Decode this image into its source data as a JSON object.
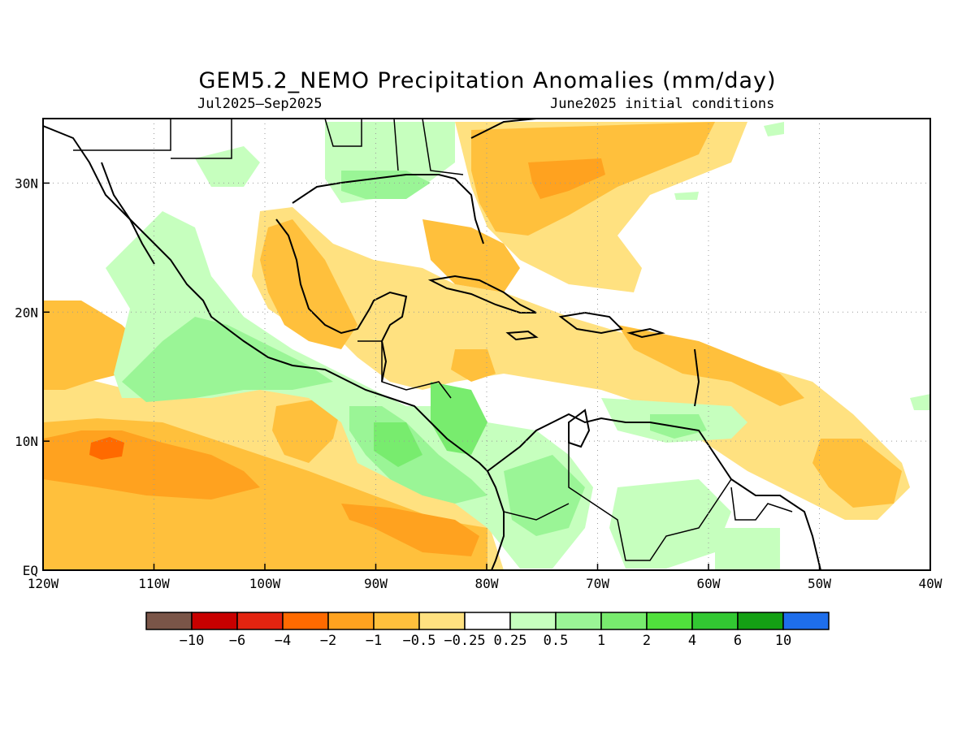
{
  "title": "GEM5.2_NEMO Precipitation Anomalies (mm/day)",
  "subtitle_left": "Jul2025–Sep2025",
  "subtitle_right": "June2025 initial conditions",
  "map": {
    "lon_range": [
      -120,
      -40
    ],
    "lat_range": [
      0,
      35
    ],
    "x_ticks": [
      {
        "lon": -120,
        "label": "120W"
      },
      {
        "lon": -110,
        "label": "110W"
      },
      {
        "lon": -100,
        "label": "100W"
      },
      {
        "lon": -90,
        "label": "90W"
      },
      {
        "lon": -80,
        "label": "80W"
      },
      {
        "lon": -70,
        "label": "70W"
      },
      {
        "lon": -60,
        "label": "60W"
      },
      {
        "lon": -50,
        "label": "50W"
      },
      {
        "lon": -40,
        "label": "40W"
      }
    ],
    "y_ticks": [
      {
        "lat": 0,
        "label": "EQ"
      },
      {
        "lat": 10,
        "label": "10N"
      },
      {
        "lat": 20,
        "label": "20N"
      },
      {
        "lat": 30,
        "label": "30N"
      }
    ],
    "grid": true,
    "features": "coastlines and country borders; shaded precipitation anomaly fields"
  },
  "colorbar": {
    "colors": [
      "#7a5548",
      "#c80000",
      "#e32410",
      "#ff6a00",
      "#ffa21f",
      "#ffc03c",
      "#ffe180",
      "#ffffff",
      "#c6ffbe",
      "#9af596",
      "#78ec6e",
      "#50e03c",
      "#32c832",
      "#14a014",
      "#1e6eeb"
    ],
    "labels": [
      "−10",
      "−6",
      "−4",
      "−2",
      "−1",
      "−0.5",
      "−0.25",
      "0.25",
      "0.5",
      "1",
      "2",
      "4",
      "6",
      "10"
    ]
  }
}
